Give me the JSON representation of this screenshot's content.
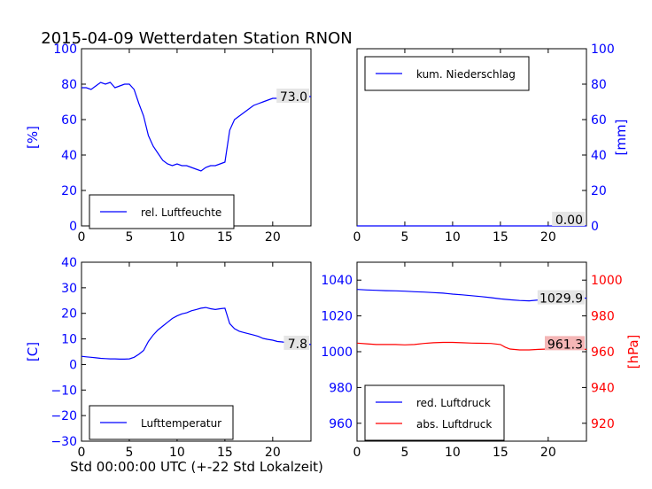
{
  "title": "2015-04-09 Wetterdaten Station RNON",
  "footer_label": "Std 00:00:00 UTC (+-22 Std Lokalzeit)",
  "colors": {
    "blue": "#0000ff",
    "red": "#ff0000",
    "label_box": "#e5e5e5",
    "label_box_red": "#f4b6b6"
  },
  "chart_data": [
    {
      "type": "line",
      "panel": "top-left",
      "ylabel": "[%]",
      "xlim": [
        0,
        24
      ],
      "ylim": [
        0,
        100
      ],
      "xticks": [
        "0",
        "5",
        "10",
        "15",
        "20"
      ],
      "yticks": [
        "0",
        "20",
        "40",
        "60",
        "80",
        "100"
      ],
      "legend": [
        "rel. Luftfeuchte"
      ],
      "legend_loc": "lower-left",
      "end_label": "73.0",
      "series": [
        {
          "name": "rel. Luftfeuchte",
          "color": "#0000ff",
          "x": [
            0,
            0.5,
            1,
            1.5,
            2,
            2.5,
            3,
            3.5,
            4,
            4.5,
            5,
            5.5,
            6,
            6.5,
            7,
            7.5,
            8,
            8.5,
            9,
            9.5,
            10,
            10.5,
            11,
            11.5,
            12,
            12.5,
            13,
            13.5,
            14,
            14.5,
            15,
            15.5,
            16,
            16.5,
            17,
            17.5,
            18,
            18.5,
            19,
            19.5,
            20,
            20.5,
            21,
            21.5,
            22,
            22.5,
            23,
            23.5,
            24
          ],
          "y": [
            78,
            78,
            77,
            79,
            81,
            80,
            81,
            78,
            79,
            80,
            80,
            77,
            69,
            62,
            51,
            45,
            41,
            37,
            35,
            34,
            35,
            34,
            34,
            33,
            32,
            31,
            33,
            34,
            34,
            35,
            36,
            54,
            60,
            62,
            64,
            66,
            68,
            69,
            70,
            71,
            72,
            72,
            72,
            73,
            73,
            74,
            74,
            73,
            73
          ]
        }
      ]
    },
    {
      "type": "line",
      "panel": "top-right",
      "ylabel": "[mm]",
      "xlim": [
        0,
        24
      ],
      "ylim": [
        0,
        100
      ],
      "xticks": [
        "0",
        "5",
        "10",
        "15",
        "20"
      ],
      "yticks": [
        "0",
        "20",
        "40",
        "60",
        "80",
        "100"
      ],
      "legend": [
        "kum. Niederschlag"
      ],
      "legend_loc": "upper-left",
      "end_label": "0.00",
      "series": [
        {
          "name": "kum. Niederschlag",
          "color": "#0000ff",
          "x": [
            0,
            24
          ],
          "y": [
            0,
            0
          ]
        }
      ]
    },
    {
      "type": "line",
      "panel": "bottom-left",
      "ylabel": "[C]",
      "xlim": [
        0,
        24
      ],
      "ylim": [
        -30,
        40
      ],
      "xticks": [
        "0",
        "5",
        "10",
        "15",
        "20"
      ],
      "yticks": [
        "−30",
        "−20",
        "−10",
        "0",
        "10",
        "20",
        "30",
        "40"
      ],
      "legend": [
        "Lufttemperatur"
      ],
      "legend_loc": "lower-left",
      "end_label": "7.8",
      "series": [
        {
          "name": "Lufttemperatur",
          "color": "#0000ff",
          "x": [
            0,
            0.5,
            1,
            1.5,
            2,
            2.5,
            3,
            3.5,
            4,
            4.5,
            5,
            5.5,
            6,
            6.5,
            7,
            7.5,
            8,
            8.5,
            9,
            9.5,
            10,
            10.5,
            11,
            11.5,
            12,
            12.5,
            13,
            13.5,
            14,
            14.5,
            15,
            15.5,
            16,
            16.5,
            17,
            17.5,
            18,
            18.5,
            19,
            19.5,
            20,
            20.5,
            21,
            21.5,
            22,
            22.5,
            23,
            23.5,
            24
          ],
          "y": [
            3.2,
            3.0,
            2.8,
            2.6,
            2.4,
            2.3,
            2.2,
            2.2,
            2.1,
            2.1,
            2.2,
            2.8,
            4.0,
            5.5,
            9.0,
            11.5,
            13.5,
            15.0,
            16.5,
            18.0,
            19.0,
            19.8,
            20.2,
            21.0,
            21.5,
            22.0,
            22.3,
            21.8,
            21.5,
            21.8,
            22.0,
            16.0,
            14.0,
            13.0,
            12.5,
            12.0,
            11.5,
            11.0,
            10.2,
            9.8,
            9.5,
            9.0,
            8.8,
            8.5,
            8.3,
            8.2,
            8.0,
            7.9,
            7.8
          ]
        }
      ]
    },
    {
      "type": "line",
      "panel": "bottom-right",
      "ylabel": "[hPa]",
      "xlim": [
        0,
        24
      ],
      "ylim_left": [
        950,
        1050
      ],
      "ylim_right": [
        910,
        1010
      ],
      "xticks": [
        "0",
        "5",
        "10",
        "15",
        "20"
      ],
      "yticks_left": [
        "960",
        "980",
        "1000",
        "1020",
        "1040"
      ],
      "yticks_right": [
        "920",
        "940",
        "960",
        "980",
        "1000"
      ],
      "legend": [
        "red. Luftdruck",
        "abs. Luftdruck"
      ],
      "legend_loc": "lower-left",
      "end_labels": [
        "1029.9",
        "961.3"
      ],
      "series": [
        {
          "name": "red. Luftdruck",
          "color": "#0000ff",
          "axis": "left",
          "x": [
            0,
            1,
            2,
            3,
            4,
            5,
            6,
            7,
            8,
            9,
            10,
            11,
            12,
            13,
            14,
            15,
            16,
            17,
            18,
            19,
            20,
            21,
            22,
            23,
            24
          ],
          "y": [
            1034.8,
            1034.5,
            1034.3,
            1034.1,
            1034.0,
            1033.8,
            1033.5,
            1033.3,
            1033.0,
            1032.7,
            1032.2,
            1031.8,
            1031.3,
            1030.8,
            1030.2,
            1029.5,
            1029.0,
            1028.6,
            1028.4,
            1028.9,
            1029.6,
            1030.0,
            1030.3,
            1030.2,
            1029.9
          ]
        },
        {
          "name": "abs. Luftdruck",
          "color": "#ff0000",
          "axis": "right",
          "x": [
            0,
            1,
            2,
            3,
            4,
            5,
            6,
            7,
            8,
            9,
            10,
            11,
            12,
            13,
            14,
            15,
            15.5,
            16,
            17,
            18,
            19,
            20,
            21,
            22,
            23,
            24
          ],
          "y": [
            964.8,
            964.4,
            964.0,
            964.0,
            964.0,
            963.8,
            964.0,
            964.6,
            965.0,
            965.2,
            965.2,
            965.0,
            964.8,
            964.7,
            964.6,
            964.0,
            962.5,
            961.5,
            961.0,
            961.0,
            961.3,
            961.5,
            961.8,
            961.8,
            961.5,
            961.3
          ]
        }
      ]
    }
  ]
}
